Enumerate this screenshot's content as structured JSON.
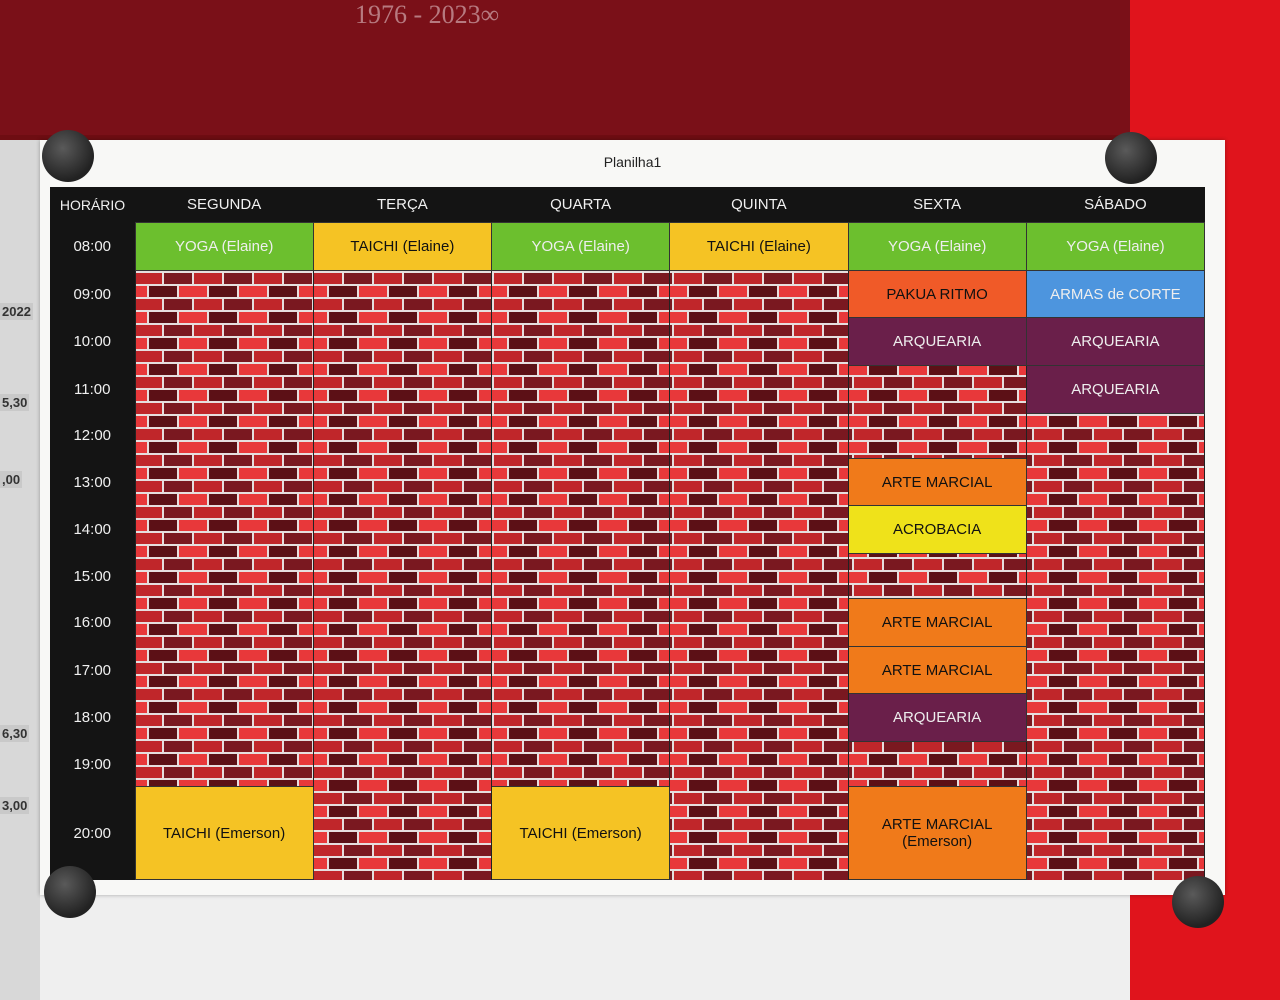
{
  "poster_text": "1976 - 2023∞",
  "side_fragments": [
    "2022",
    "5,30",
    ",00",
    "6,30",
    "3,00"
  ],
  "header": {
    "title": "Planilha1"
  },
  "table": {
    "columns": [
      "HORÁRIO",
      "SEGUNDA",
      "TERÇA",
      "QUARTA",
      "QUINTA",
      "SEXTA",
      "SÁBADO"
    ],
    "rows": [
      {
        "time": "08:00",
        "cells": [
          {
            "text": "YOGA (Elaine)",
            "color": "#6cbf2e"
          },
          {
            "text": "TAICHI (Elaine)",
            "color": "#f5c324"
          },
          {
            "text": "YOGA (Elaine)",
            "color": "#6cbf2e"
          },
          {
            "text": "TAICHI (Elaine)",
            "color": "#f5c324"
          },
          {
            "text": "YOGA (Elaine)",
            "color": "#6cbf2e"
          },
          {
            "text": "YOGA (Elaine)",
            "color": "#6cbf2e"
          }
        ]
      },
      {
        "time": "09:00",
        "cells": [
          null,
          null,
          null,
          null,
          {
            "text": "PAKUA RITMO",
            "color": "#f05a28"
          },
          {
            "text": "ARMAS de CORTE",
            "color": "#4d95de"
          }
        ]
      },
      {
        "time": "10:00",
        "cells": [
          null,
          null,
          null,
          null,
          {
            "text": "ARQUEARIA",
            "color": "#6a1f4a"
          },
          {
            "text": "ARQUEARIA",
            "color": "#6a1f4a"
          }
        ]
      },
      {
        "time": "11:00",
        "cells": [
          null,
          null,
          null,
          null,
          null,
          {
            "text": "ARQUEARIA",
            "color": "#6a1f4a"
          }
        ]
      },
      {
        "time": "12:00",
        "cells": [
          null,
          null,
          null,
          null,
          null,
          null
        ]
      },
      {
        "time": "13:00",
        "cells": [
          null,
          null,
          null,
          null,
          {
            "text": "ARTE MARCIAL",
            "color": "#f07a1a"
          },
          null
        ]
      },
      {
        "time": "14:00",
        "cells": [
          null,
          null,
          null,
          null,
          {
            "text": "ACROBACIA",
            "color": "#efe21a"
          },
          null
        ]
      },
      {
        "time": "15:00",
        "cells": [
          null,
          null,
          null,
          null,
          null,
          null
        ]
      },
      {
        "time": "16:00",
        "cells": [
          null,
          null,
          null,
          null,
          {
            "text": "ARTE MARCIAL",
            "color": "#f07a1a"
          },
          null
        ]
      },
      {
        "time": "17:00",
        "cells": [
          null,
          null,
          null,
          null,
          {
            "text": "ARTE MARCIAL",
            "color": "#f07a1a"
          },
          null
        ]
      },
      {
        "time": "18:00",
        "cells": [
          null,
          null,
          null,
          null,
          {
            "text": "ARQUEARIA",
            "color": "#6a1f4a"
          },
          null
        ]
      },
      {
        "time": "19:00",
        "cells": [
          null,
          null,
          null,
          null,
          null,
          null
        ]
      },
      {
        "time": "20:00",
        "cells": [
          {
            "text": "TAICHI (Emerson)",
            "color": "#f5c324"
          },
          null,
          {
            "text": "TAICHI (Emerson)",
            "color": "#f5c324"
          },
          null,
          {
            "text": "ARTE MARCIAL\n(Emerson)",
            "color": "#f07a1a"
          },
          null
        ]
      }
    ]
  }
}
